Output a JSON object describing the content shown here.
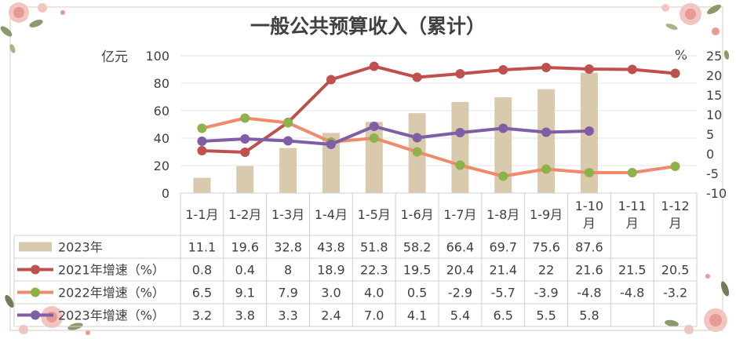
{
  "chart_data": {
    "type": "bar+line",
    "title": "一般公共预算收入（累计）",
    "y_left_label": "亿元",
    "y_right_label": "%",
    "y_left_lim": [
      0,
      100
    ],
    "y_left_ticks": [
      "0",
      "20",
      "40",
      "60",
      "80",
      "100"
    ],
    "y_right_lim": [
      -10,
      25
    ],
    "y_right_ticks": [
      "-10",
      "-5",
      "0",
      "5",
      "10",
      "15",
      "20",
      "25"
    ],
    "categories": [
      "1-1月",
      "1-2月",
      "1-3月",
      "1-4月",
      "1-5月",
      "1-6月",
      "1-7月",
      "1-8月",
      "1-9月",
      "1-10月",
      "1-11月",
      "1-12月"
    ],
    "bar_series": {
      "name": "2023年",
      "color": "#d9c9ad",
      "values": [
        11.1,
        19.6,
        32.8,
        43.8,
        51.8,
        58.2,
        66.4,
        69.7,
        75.6,
        87.6,
        null,
        null
      ],
      "labels": [
        "11.1",
        "19.6",
        "32.8",
        "43.8",
        "51.8",
        "58.2",
        "66.4",
        "69.7",
        "75.6",
        "87.6",
        "",
        ""
      ]
    },
    "line_series": [
      {
        "name": "2021年增速（%）",
        "color": "#c0504d",
        "values": [
          0.8,
          0.4,
          8,
          18.9,
          22.3,
          19.5,
          20.4,
          21.4,
          22,
          21.6,
          21.5,
          20.5
        ],
        "labels": [
          "0.8",
          "0.4",
          "8",
          "18.9",
          "22.3",
          "19.5",
          "20.4",
          "21.4",
          "22",
          "21.6",
          "21.5",
          "20.5"
        ]
      },
      {
        "name": "2022年增速（%）",
        "color": "#f08a6c",
        "marker_color": "#8db24a",
        "values": [
          6.5,
          9.1,
          7.9,
          3.0,
          4.0,
          0.5,
          -2.9,
          -5.7,
          -3.9,
          -4.8,
          -4.8,
          -3.2
        ],
        "labels": [
          "6.5",
          "9.1",
          "7.9",
          "3.0",
          "4.0",
          "0.5",
          "-2.9",
          "-5.7",
          "-3.9",
          "-4.8",
          "-4.8",
          "-3.2"
        ]
      },
      {
        "name": "2023年增速（%）",
        "color": "#7f5ea6",
        "values": [
          3.2,
          3.8,
          3.3,
          2.4,
          7.0,
          4.1,
          5.4,
          6.5,
          5.5,
          5.8,
          null,
          null
        ],
        "labels": [
          "3.2",
          "3.8",
          "3.3",
          "2.4",
          "7.0",
          "4.1",
          "5.4",
          "6.5",
          "5.5",
          "5.8",
          "",
          ""
        ]
      }
    ],
    "grid": true,
    "legend": "data-table"
  }
}
